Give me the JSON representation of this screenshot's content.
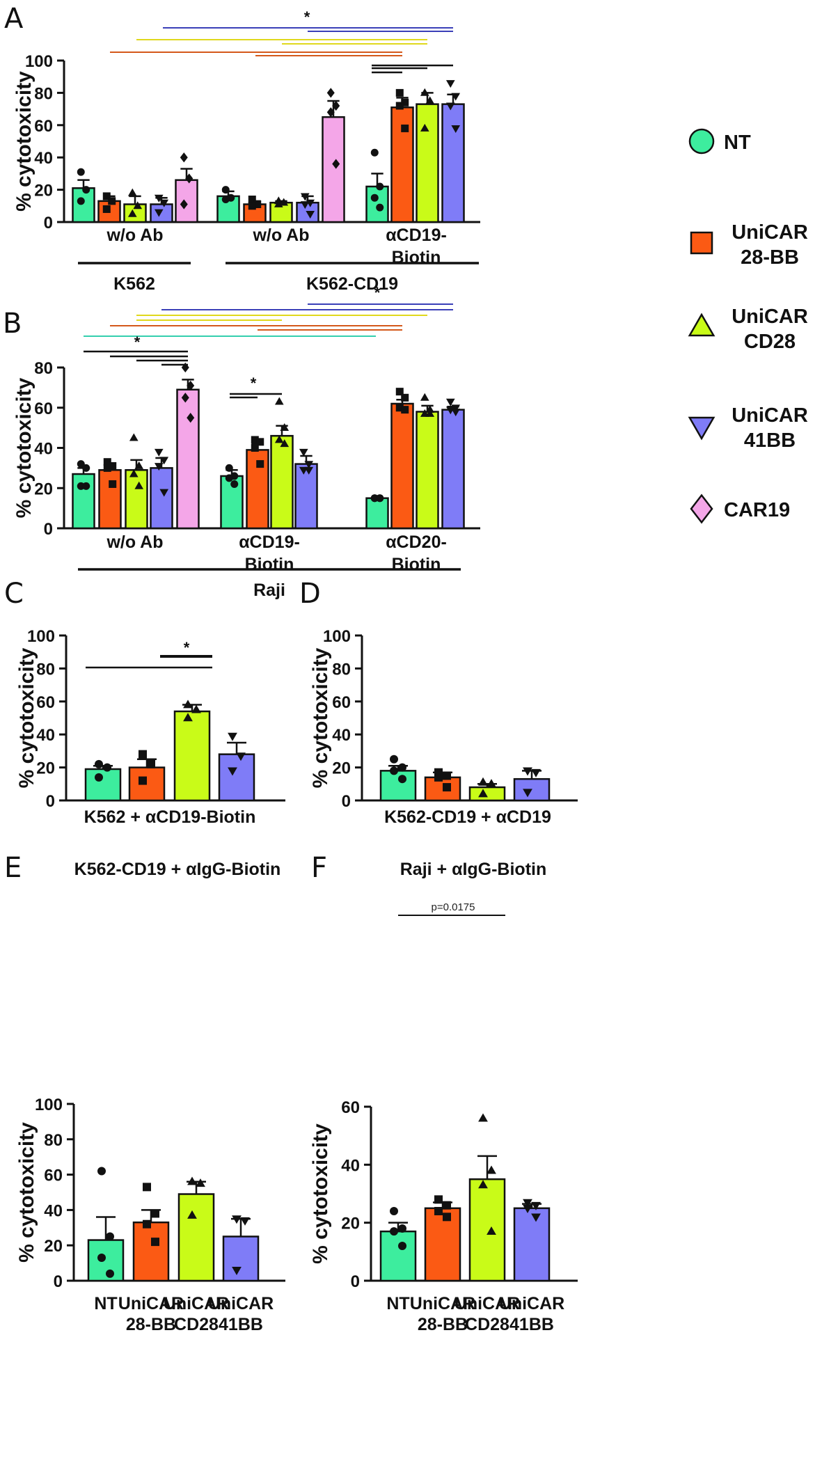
{
  "colors": {
    "NT": "#3ded9e",
    "UniCAR 28-BB": "#fb5a14",
    "UniCAR CD28": "#c9fb18",
    "UniCAR 41BB": "#7f7cf7",
    "CAR19": "#f4a6e8"
  },
  "legend": [
    {
      "key": "NT",
      "lines": [
        "NT"
      ],
      "marker": "circle"
    },
    {
      "key": "UniCAR 28-BB",
      "lines": [
        "UniCAR",
        "28-BB"
      ],
      "marker": "square"
    },
    {
      "key": "UniCAR CD28",
      "lines": [
        "UniCAR",
        "CD28"
      ],
      "marker": "triangle"
    },
    {
      "key": "UniCAR 41BB",
      "lines": [
        "UniCAR",
        "41BB"
      ],
      "marker": "invtriangle"
    },
    {
      "key": "CAR19",
      "lines": [
        "CAR19"
      ],
      "marker": "diamond"
    }
  ],
  "chart_data": [
    {
      "panel": "A",
      "type": "bar",
      "ylabel": "% cytotoxicity",
      "ylim": [
        0,
        100
      ],
      "yticks": [
        0,
        20,
        40,
        60,
        80,
        100
      ],
      "groups": [
        {
          "label": [
            "w/o Ab"
          ],
          "bars": [
            {
              "series": "NT",
              "mean": 21,
              "sem": 5,
              "points": [
                31,
                20,
                13
              ]
            },
            {
              "series": "UniCAR 28-BB",
              "mean": 13,
              "sem": 3,
              "points": [
                16,
                13,
                8
              ]
            },
            {
              "series": "UniCAR CD28",
              "mean": 11,
              "sem": 5,
              "points": [
                18,
                10,
                5
              ]
            },
            {
              "series": "UniCAR 41BB",
              "mean": 11,
              "sem": 4,
              "points": [
                15,
                12,
                6
              ]
            },
            {
              "series": "CAR19",
              "mean": 26,
              "sem": 7,
              "points": [
                40,
                27,
                11
              ]
            }
          ]
        },
        {
          "label": [
            "w/o Ab"
          ],
          "bars": [
            {
              "series": "NT",
              "mean": 16,
              "sem": 3,
              "points": [
                20,
                15,
                14
              ]
            },
            {
              "series": "UniCAR 28-BB",
              "mean": 11,
              "sem": 2,
              "points": [
                14,
                11,
                10
              ]
            },
            {
              "series": "UniCAR CD28",
              "mean": 12,
              "sem": 1,
              "points": [
                13,
                12,
                11
              ]
            },
            {
              "series": "UniCAR 41BB",
              "mean": 12,
              "sem": 4,
              "points": [
                16,
                12,
                11,
                5
              ]
            },
            {
              "series": "CAR19",
              "mean": 65,
              "sem": 10,
              "points": [
                80,
                72,
                68,
                36
              ]
            }
          ]
        },
        {
          "label": [
            "αCD19-",
            "Biotin"
          ],
          "bars": [
            {
              "series": "NT",
              "mean": 22,
              "sem": 8,
              "points": [
                43,
                22,
                15,
                9
              ]
            },
            {
              "series": "UniCAR 28-BB",
              "mean": 71,
              "sem": 6,
              "points": [
                80,
                74,
                72,
                58
              ]
            },
            {
              "series": "UniCAR CD28",
              "mean": 73,
              "sem": 7,
              "points": [
                80,
                75,
                58
              ]
            },
            {
              "series": "UniCAR 41BB",
              "mean": 73,
              "sem": 6,
              "points": [
                86,
                78,
                72,
                58
              ]
            }
          ]
        }
      ],
      "cells": [
        {
          "label": "K562",
          "groups": [
            0,
            0
          ]
        },
        {
          "label": "K562-CD19",
          "groups": [
            1,
            2
          ]
        }
      ],
      "sig_stars": [
        "*"
      ]
    },
    {
      "panel": "B",
      "type": "bar",
      "ylabel": "% cytotoxicity",
      "ylim": [
        0,
        80
      ],
      "yticks": [
        0,
        20,
        40,
        60,
        80
      ],
      "groups": [
        {
          "label": [
            "w/o Ab"
          ],
          "bars": [
            {
              "series": "NT",
              "mean": 27,
              "sem": 3,
              "points": [
                32,
                30,
                21,
                21
              ]
            },
            {
              "series": "UniCAR 28-BB",
              "mean": 29,
              "sem": 3,
              "points": [
                33,
                31,
                30,
                22
              ]
            },
            {
              "series": "UniCAR CD28",
              "mean": 29,
              "sem": 5,
              "points": [
                45,
                31,
                27,
                21
              ]
            },
            {
              "series": "UniCAR 41BB",
              "mean": 30,
              "sem": 5,
              "points": [
                38,
                34,
                31,
                18
              ]
            },
            {
              "series": "CAR19",
              "mean": 69,
              "sem": 5,
              "points": [
                80,
                71,
                65,
                55
              ]
            }
          ]
        },
        {
          "label": [
            "αCD19-",
            "Biotin"
          ],
          "bars": [
            {
              "series": "NT",
              "mean": 26,
              "sem": 3,
              "points": [
                30,
                26,
                25,
                22
              ]
            },
            {
              "series": "UniCAR 28-BB",
              "mean": 39,
              "sem": 3,
              "points": [
                44,
                43,
                40,
                32
              ]
            },
            {
              "series": "UniCAR CD28",
              "mean": 46,
              "sem": 5,
              "points": [
                63,
                50,
                44,
                42
              ]
            },
            {
              "series": "UniCAR 41BB",
              "mean": 32,
              "sem": 4,
              "points": [
                38,
                32,
                29,
                29
              ]
            }
          ]
        },
        {
          "label": [
            "αCD20-",
            "Biotin"
          ],
          "bars": [
            {
              "series": "NT",
              "mean": 15,
              "sem": 0.3,
              "points": [
                15,
                15,
                15,
                15
              ]
            },
            {
              "series": "UniCAR 28-BB",
              "mean": 62,
              "sem": 2,
              "points": [
                68,
                65,
                60,
                59
              ]
            },
            {
              "series": "UniCAR CD28",
              "mean": 58,
              "sem": 3,
              "points": [
                65,
                59,
                57,
                57
              ]
            },
            {
              "series": "UniCAR 41BB",
              "mean": 59,
              "sem": 1.5,
              "points": [
                63,
                60,
                59,
                58
              ]
            }
          ]
        }
      ],
      "cells": [
        {
          "label": "Raji",
          "groups": [
            0,
            2
          ]
        }
      ],
      "sig_stars": [
        "*",
        "*",
        "*"
      ]
    },
    {
      "panel": "C",
      "type": "bar",
      "ylabel": "% cytotoxicity",
      "ylim": [
        0,
        100
      ],
      "yticks": [
        0,
        20,
        40,
        60,
        80,
        100
      ],
      "xlabel": "K562 + αCD19-Biotin",
      "bars": [
        {
          "series": "NT",
          "mean": 19,
          "sem": 2,
          "points": [
            22,
            20,
            14
          ]
        },
        {
          "series": "UniCAR 28-BB",
          "mean": 20,
          "sem": 5,
          "points": [
            28,
            22,
            12
          ]
        },
        {
          "series": "UniCAR CD28",
          "mean": 54,
          "sem": 4,
          "points": [
            58,
            55,
            50
          ]
        },
        {
          "series": "UniCAR 41BB",
          "mean": 28,
          "sem": 7,
          "points": [
            39,
            27,
            18
          ]
        }
      ],
      "sig_stars": [
        "*"
      ]
    },
    {
      "panel": "D",
      "type": "bar",
      "ylabel": "% cytotoxicity",
      "ylim": [
        0,
        100
      ],
      "yticks": [
        0,
        20,
        40,
        60,
        80,
        100
      ],
      "xlabel": "K562-CD19 + αCD19",
      "bars": [
        {
          "series": "NT",
          "mean": 18,
          "sem": 3,
          "points": [
            25,
            20,
            18,
            13
          ]
        },
        {
          "series": "UniCAR 28-BB",
          "mean": 14,
          "sem": 3,
          "points": [
            17,
            15,
            14,
            8
          ]
        },
        {
          "series": "UniCAR CD28",
          "mean": 8,
          "sem": 2,
          "points": [
            11,
            10,
            4
          ]
        },
        {
          "series": "UniCAR 41BB",
          "mean": 13,
          "sem": 5,
          "points": [
            18,
            17,
            5
          ]
        }
      ]
    },
    {
      "panel": "E",
      "type": "bar",
      "title": "K562-CD19 + αIgG-Biotin",
      "ylabel": "% cytotoxicity",
      "ylim": [
        0,
        100
      ],
      "yticks": [
        0,
        20,
        40,
        60,
        80,
        100
      ],
      "categories": [
        [
          "NT"
        ],
        [
          "UniCAR",
          "28-BB"
        ],
        [
          "UniCAR",
          "CD28"
        ],
        [
          "UniCAR",
          "41BB"
        ]
      ],
      "bars": [
        {
          "series": "NT",
          "mean": 23,
          "sem": 13,
          "points": [
            62,
            25,
            13,
            4
          ]
        },
        {
          "series": "UniCAR 28-BB",
          "mean": 33,
          "sem": 7,
          "points": [
            53,
            38,
            32,
            22
          ]
        },
        {
          "series": "UniCAR CD28",
          "mean": 49,
          "sem": 7,
          "points": [
            56,
            55,
            37
          ]
        },
        {
          "series": "UniCAR 41BB",
          "mean": 25,
          "sem": 10,
          "points": [
            35,
            34,
            6
          ]
        }
      ]
    },
    {
      "panel": "F",
      "type": "bar",
      "title": "Raji + αIgG-Biotin",
      "ylabel": "% cytotoxicity",
      "ylim": [
        0,
        60
      ],
      "yticks": [
        0,
        20,
        40,
        60
      ],
      "categories": [
        [
          "NT"
        ],
        [
          "UniCAR",
          "28-BB"
        ],
        [
          "UniCAR",
          "CD28"
        ],
        [
          "UniCAR",
          "41BB"
        ]
      ],
      "bars": [
        {
          "series": "NT",
          "mean": 17,
          "sem": 3,
          "points": [
            24,
            18,
            17,
            12
          ]
        },
        {
          "series": "UniCAR 28-BB",
          "mean": 25,
          "sem": 2,
          "points": [
            28,
            26,
            24,
            22
          ]
        },
        {
          "series": "UniCAR CD28",
          "mean": 35,
          "sem": 8,
          "points": [
            56,
            38,
            33,
            17
          ]
        },
        {
          "series": "UniCAR 41BB",
          "mean": 25,
          "sem": 1.5,
          "points": [
            27,
            26,
            25,
            22
          ]
        }
      ],
      "pvalue": "p=0.0175"
    }
  ]
}
